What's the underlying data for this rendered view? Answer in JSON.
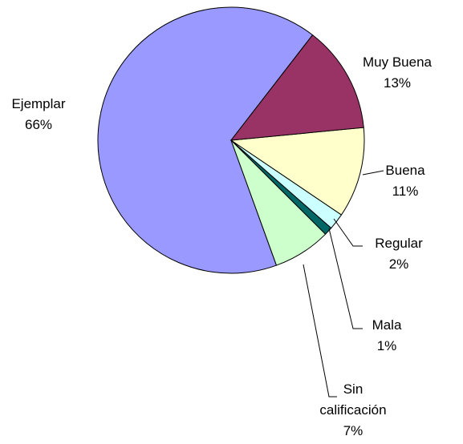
{
  "chart_data": {
    "type": "pie",
    "categories": [
      "Muy Buena",
      "Buena",
      "Regular",
      "Mala",
      "Sin calificación",
      "Ejemplar"
    ],
    "values": [
      13,
      11,
      2,
      1,
      7,
      66
    ],
    "value_labels": [
      "13%",
      "11%",
      "2%",
      "1%",
      "7%",
      "66%"
    ],
    "colors": [
      "#993366",
      "#ffffcc",
      "#ccffff",
      "#006666",
      "#ccffcc",
      "#9999ff"
    ]
  }
}
